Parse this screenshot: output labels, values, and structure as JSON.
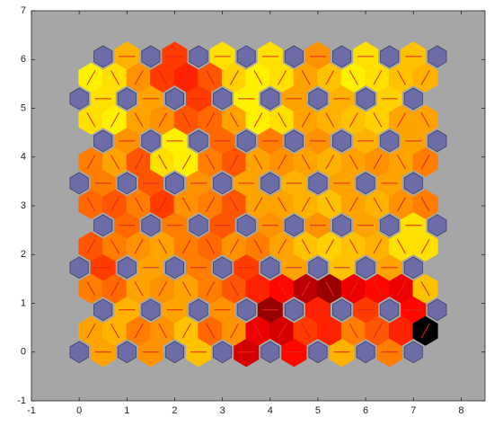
{
  "chart_data": {
    "type": "som_neighbor_distances",
    "dimensions": [
      8,
      8
    ],
    "xlim": [
      -1,
      8.5
    ],
    "ylim": [
      -1,
      7
    ],
    "xticks": [
      -1,
      0,
      1,
      2,
      3,
      4,
      5,
      6,
      7,
      8
    ],
    "yticks": [
      -1,
      0,
      1,
      2,
      3,
      4,
      5,
      6,
      7
    ],
    "axes_color": "#a6a6a6",
    "neuron_color": "#6c6ca6",
    "line_color": "#e3261b",
    "colormap": [
      "#ffff00",
      "#ffcc00",
      "#ff9900",
      "#ff5500",
      "#ff0000",
      "#aa0000",
      "#000000"
    ],
    "clim": [
      0,
      1
    ],
    "horizontal_distances": [
      [
        0.3,
        0.35,
        0.2,
        0.75,
        0.65,
        0.25,
        0.4
      ],
      [
        0.25,
        0.3,
        0.35,
        0.85,
        0.6,
        0.55,
        0.65
      ],
      [
        0.55,
        0.3,
        0.4,
        0.55,
        0.3,
        0.2,
        0.3
      ],
      [
        0.45,
        0.4,
        0.5,
        0.35,
        0.35,
        0.3,
        0.1
      ],
      [
        0.4,
        0.5,
        0.35,
        0.3,
        0.25,
        0.3,
        0.3
      ],
      [
        0.35,
        0.05,
        0.45,
        0.4,
        0.35,
        0.25,
        0.3
      ],
      [
        0.1,
        0.3,
        0.55,
        0.05,
        0.3,
        0.25,
        0.15
      ],
      [
        0.25,
        0.55,
        0.1,
        0.1,
        0.35,
        0.1,
        0.2
      ]
    ],
    "diagonal_distances": [
      [
        0.3,
        0.25,
        0.4,
        0.35,
        0.2,
        0.45,
        0.35,
        0.7,
        0.75,
        0.55,
        0.6,
        0.4,
        0.5,
        0.6,
        1.0
      ],
      [
        0.4,
        0.45,
        0.3,
        0.35,
        0.3,
        0.4,
        0.5,
        0.6,
        0.65,
        0.8,
        0.85,
        0.7,
        0.65,
        0.7,
        0.2
      ],
      [
        0.5,
        0.4,
        0.35,
        0.3,
        0.4,
        0.45,
        0.35,
        0.4,
        0.3,
        0.2,
        0.15,
        0.2,
        0.25,
        0.1,
        0.1
      ],
      [
        0.45,
        0.5,
        0.4,
        0.55,
        0.35,
        0.4,
        0.5,
        0.3,
        0.3,
        0.25,
        0.2,
        0.3,
        0.25,
        0.35,
        0.4
      ],
      [
        0.4,
        0.3,
        0.5,
        0.1,
        0.05,
        0.4,
        0.5,
        0.3,
        0.35,
        0.3,
        0.25,
        0.3,
        0.35,
        0.3,
        0.4
      ],
      [
        0.1,
        0.05,
        0.3,
        0.35,
        0.5,
        0.45,
        0.3,
        0.05,
        0.1,
        0.3,
        0.25,
        0.2,
        0.15,
        0.3,
        0.3
      ],
      [
        0.05,
        0.1,
        0.35,
        0.55,
        0.6,
        0.5,
        0.15,
        0.05,
        0.1,
        0.3,
        0.2,
        0.05,
        0.1,
        0.2,
        0.25
      ]
    ]
  }
}
